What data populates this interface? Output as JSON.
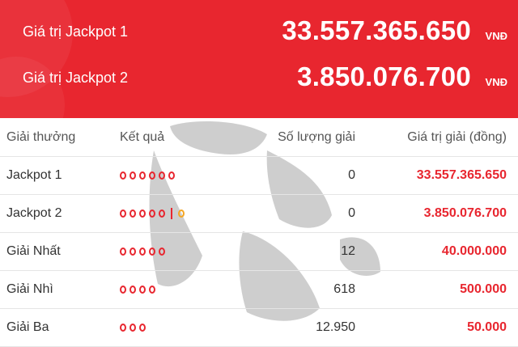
{
  "jackpots": [
    {
      "label": "Giá trị Jackpot 1",
      "value": "33.557.365.650",
      "unit": "VNĐ"
    },
    {
      "label": "Giá trị Jackpot 2",
      "value": "3.850.076.700",
      "unit": "VNĐ"
    }
  ],
  "table": {
    "headers": {
      "name": "Giải thưởng",
      "result": "Kết quả",
      "count": "Số lượng giải",
      "value": "Giá trị giải (đồng)"
    },
    "rows": [
      {
        "name": "Jackpot 1",
        "dots": 6,
        "special": false,
        "count": "0",
        "value": "33.557.365.650"
      },
      {
        "name": "Jackpot 2",
        "dots": 5,
        "special": true,
        "count": "0",
        "value": "3.850.076.700"
      },
      {
        "name": "Giải Nhất",
        "dots": 5,
        "special": false,
        "count": "12",
        "value": "40.000.000"
      },
      {
        "name": "Giải Nhì",
        "dots": 4,
        "special": false,
        "count": "618",
        "value": "500.000"
      },
      {
        "name": "Giải Ba",
        "dots": 3,
        "special": false,
        "count": "12.950",
        "value": "50.000"
      }
    ]
  },
  "colors": {
    "accent": "#e8262f",
    "special_ball": "#f5a623"
  }
}
